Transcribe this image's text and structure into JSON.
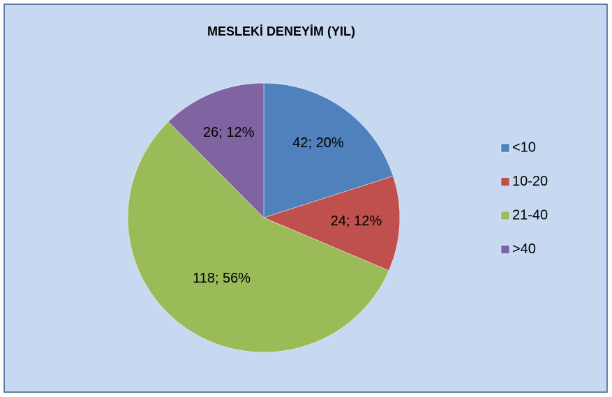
{
  "chart_data": {
    "type": "pie",
    "title": "MESLEKİ DENEYİM (YIL)",
    "categories": [
      "<10",
      "10-20",
      "21-40",
      ">40"
    ],
    "values": [
      42,
      24,
      118,
      26
    ],
    "value_labels": [
      "42; 20%",
      "24; 12%",
      "118; 56%",
      "26; 12%"
    ],
    "colors": [
      "#4f81bd",
      "#c0504d",
      "#9bbb59",
      "#8064a2"
    ],
    "legend": "right"
  }
}
